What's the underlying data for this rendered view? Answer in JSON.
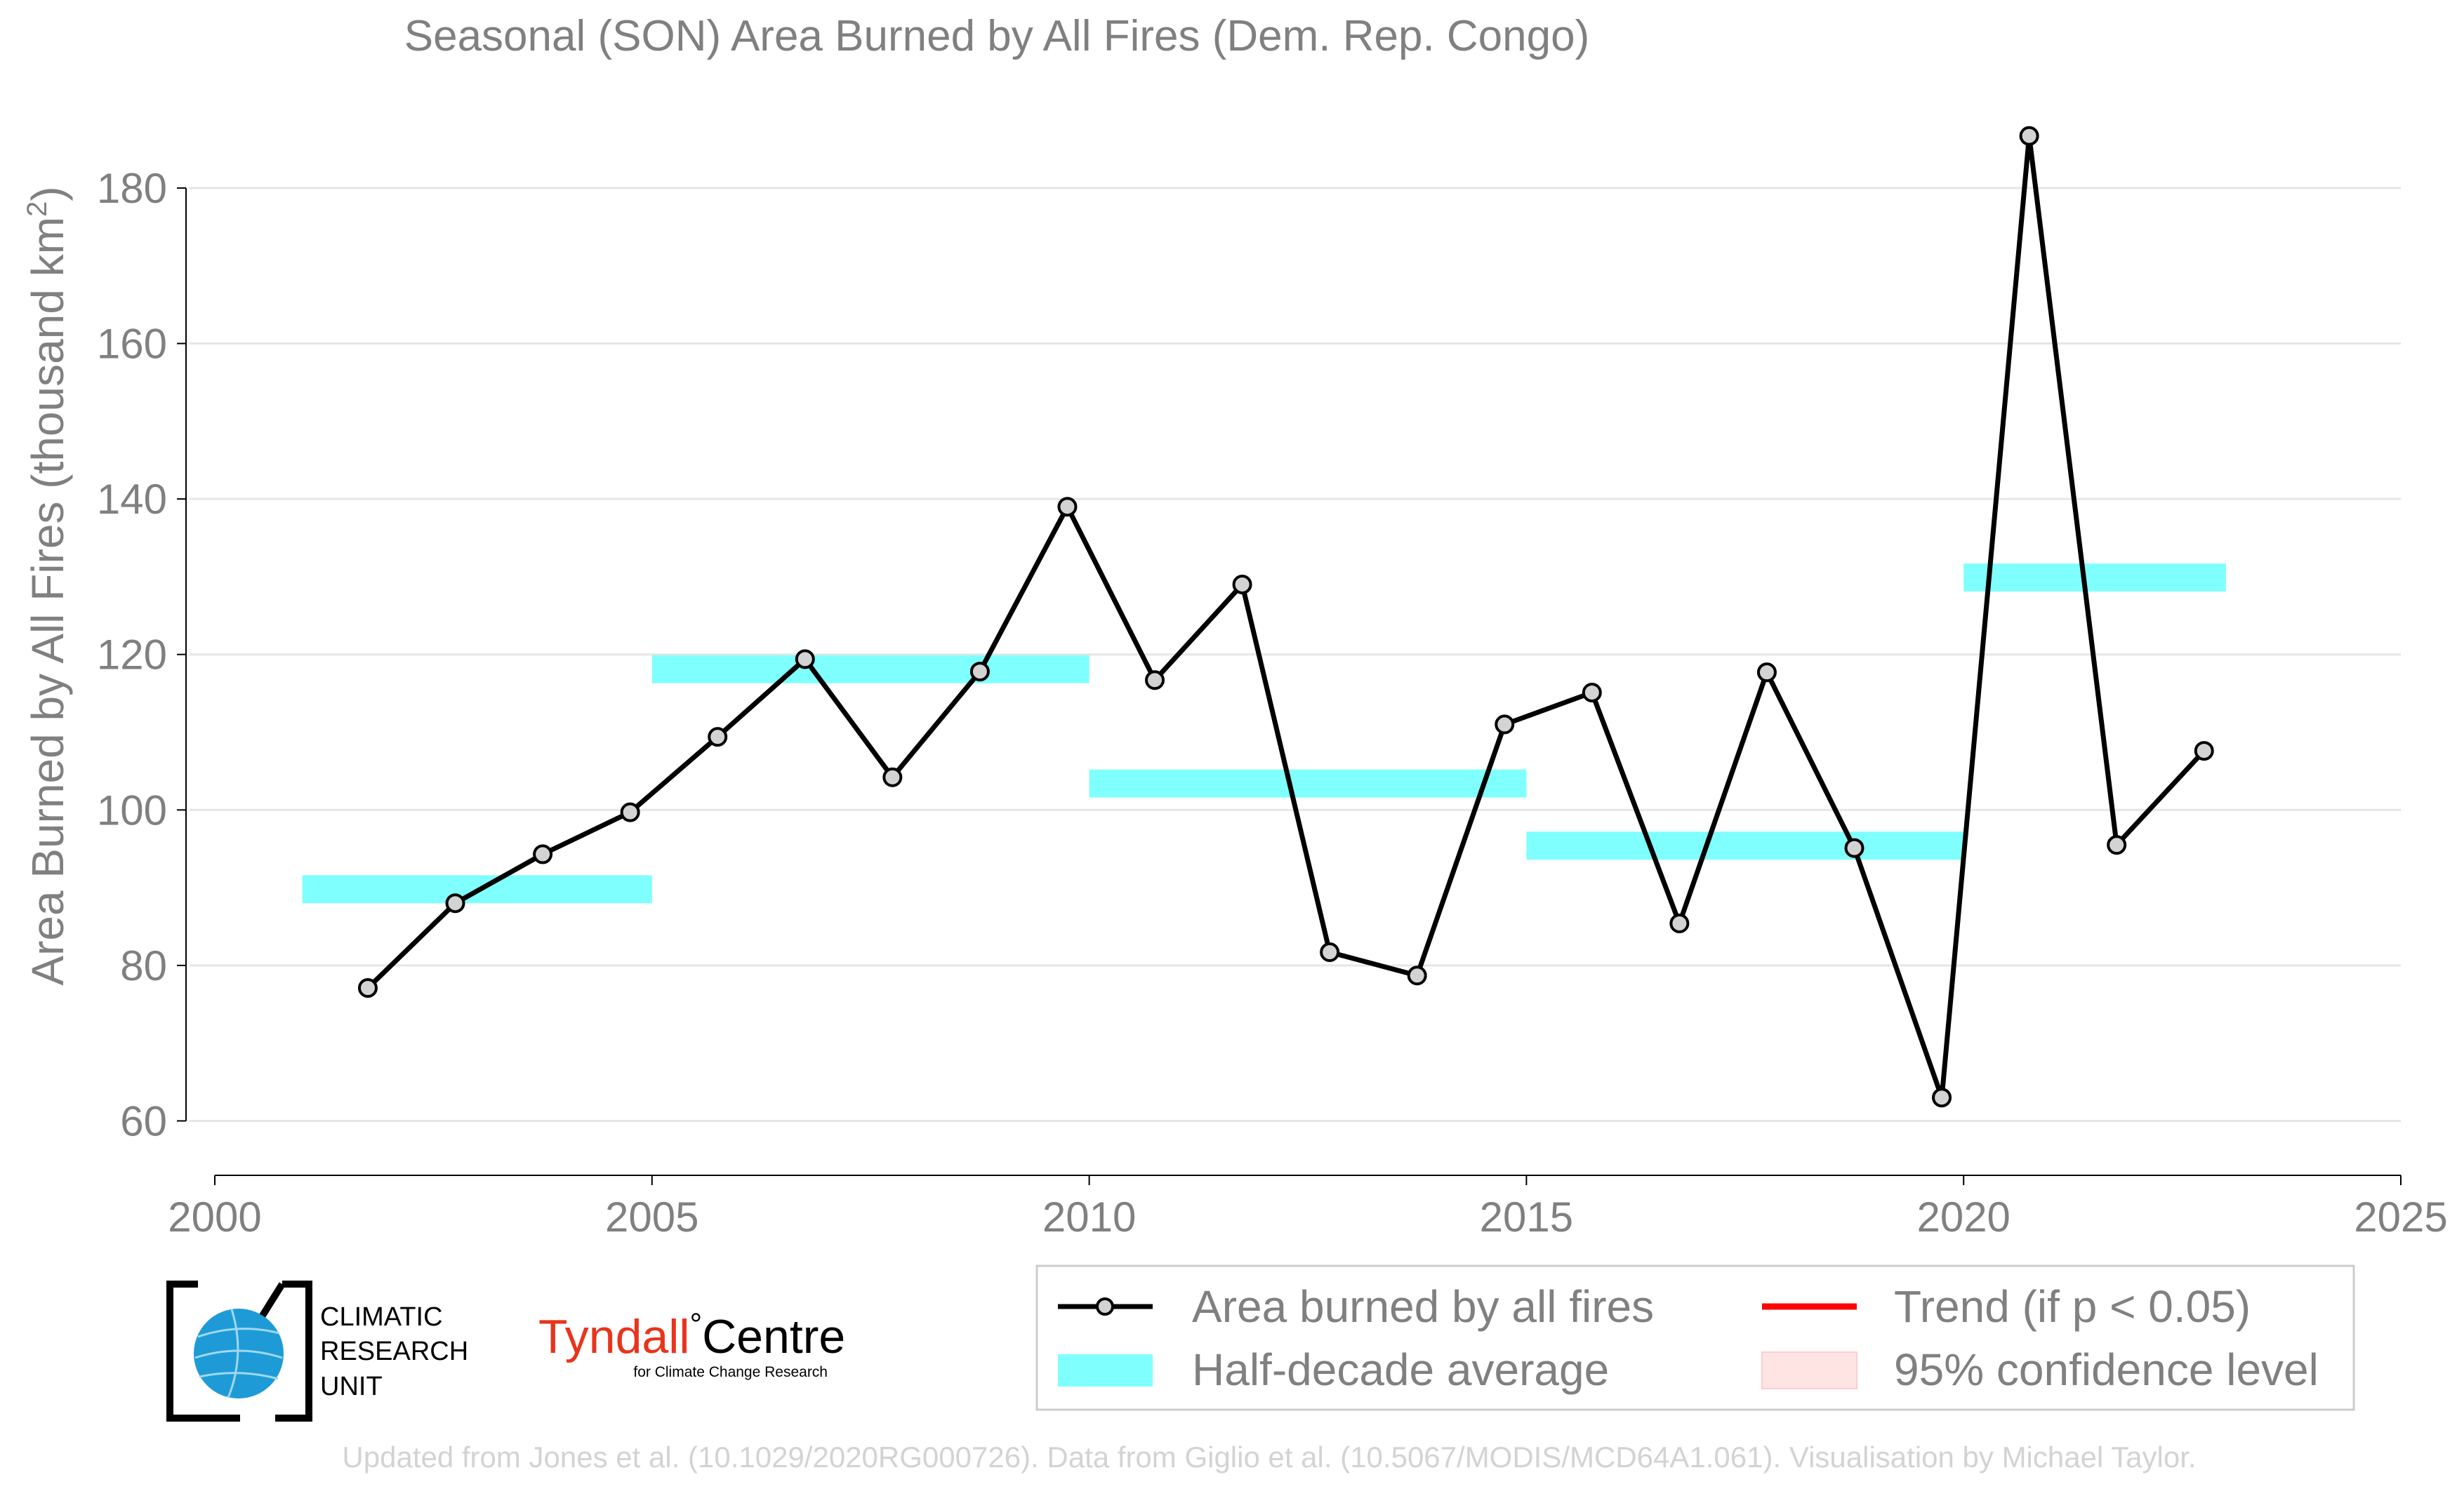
{
  "chart_data": {
    "type": "line",
    "title": "Seasonal (SON) Area Burned by All Fires (Dem. Rep. Congo)",
    "ylabel": "Area Burned by All Fires (thousand km",
    "ylabel_sup": "2",
    "ylabel_close": ")",
    "xlabel": "",
    "xlim": [
      2000,
      2025
    ],
    "ylim": [
      53,
      192
    ],
    "xticks": [
      2000,
      2005,
      2010,
      2015,
      2020,
      2025
    ],
    "yticks": [
      60,
      80,
      100,
      120,
      140,
      160,
      180
    ],
    "grid": "horizontal",
    "series": [
      {
        "name": "Area burned by all fires",
        "color": "#000000",
        "x": [
          2001.75,
          2002.75,
          2003.75,
          2004.75,
          2005.75,
          2006.75,
          2007.75,
          2008.75,
          2009.75,
          2010.75,
          2011.75,
          2012.75,
          2013.75,
          2014.75,
          2015.75,
          2016.75,
          2017.75,
          2018.75,
          2019.75,
          2020.75,
          2021.75,
          2022.75
        ],
        "y": [
          77.1,
          88.0,
          94.3,
          99.7,
          109.4,
          119.4,
          104.2,
          117.8,
          139.0,
          116.7,
          129.0,
          81.7,
          78.7,
          111.0,
          115.1,
          85.4,
          117.7,
          95.1,
          63.0,
          186.7,
          95.5,
          107.6
        ]
      }
    ],
    "half_decade_average": {
      "name": "Half-decade average",
      "color": "#80ffff",
      "periods": [
        {
          "x": [
            2001,
            2005
          ],
          "y": 89.8
        },
        {
          "x": [
            2005,
            2010
          ],
          "y": 118.1
        },
        {
          "x": [
            2010,
            2015
          ],
          "y": 103.4
        },
        {
          "x": [
            2015,
            2020
          ],
          "y": 95.4
        },
        {
          "x": [
            2020,
            2023
          ],
          "y": 129.9
        }
      ]
    },
    "legend": {
      "placement": "bottom-right",
      "entries": [
        {
          "label": "Area burned by all fires",
          "kind": "line-marker",
          "color": "#000000"
        },
        {
          "label": "Trend (if p < 0.05)",
          "kind": "line",
          "color": "#ff0000"
        },
        {
          "label": "Half-decade average",
          "kind": "band",
          "color": "#80ffff"
        },
        {
          "label": "95% confidence level",
          "kind": "patch",
          "color": "#ffe4e4"
        }
      ]
    }
  },
  "logos": {
    "cru": {
      "line1": "CLIMATIC",
      "line2": "RESEARCH",
      "line3": "UNIT"
    },
    "tyndall": {
      "word1": "Tyndall",
      "degree": "°",
      "word2": "Centre",
      "sub": "for Climate Change Research"
    }
  },
  "footer": "Updated from Jones et al. (10.1029/2020RG000726). Data from Giglio et al. (10.5067/MODIS/MCD64A1.061). Visualisation by Michael Taylor.",
  "colors": {
    "text": "#808080",
    "grid": "#e6e6e6",
    "marker_fill": "#d3d3d3",
    "cru_globe": "#1e9bd7",
    "tyndall_red": "#e8341c"
  }
}
